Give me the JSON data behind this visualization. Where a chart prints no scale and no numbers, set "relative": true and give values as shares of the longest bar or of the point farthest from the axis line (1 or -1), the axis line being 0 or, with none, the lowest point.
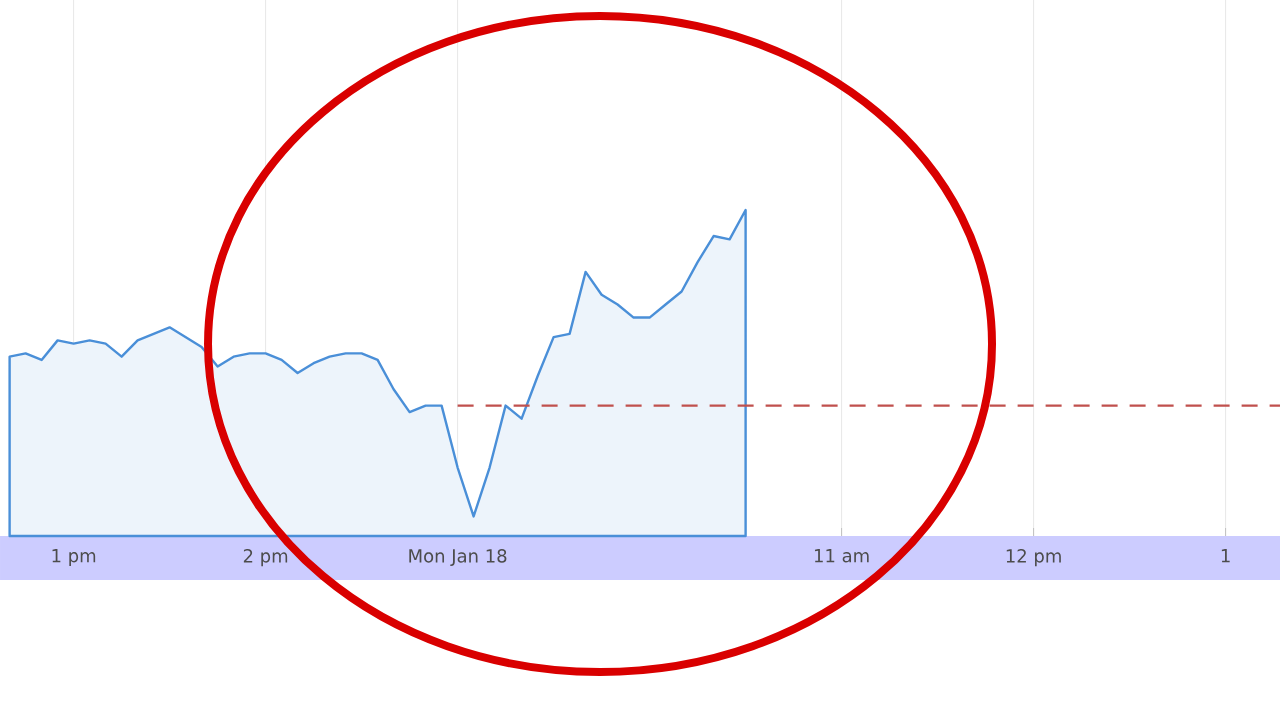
{
  "chart_data": {
    "type": "area",
    "relative": true,
    "color": "#4a8fd8",
    "categories": [
      null,
      null,
      null,
      null,
      "1 pm",
      null,
      null,
      null,
      null,
      null,
      null,
      null,
      null,
      null,
      null,
      null,
      "2 pm",
      null,
      null,
      null,
      null,
      null,
      null,
      null,
      null,
      null,
      null,
      null,
      "Mon Jan 18",
      null,
      null,
      null,
      null,
      null,
      null,
      null,
      null,
      null,
      null,
      null,
      null,
      null,
      null,
      null,
      null,
      null,
      null,
      null,
      null,
      null,
      null,
      null,
      "11 am",
      null,
      null,
      null,
      null,
      null,
      null,
      null,
      null,
      null,
      null,
      null,
      "12 pm",
      null,
      null,
      null,
      null,
      null,
      null,
      null,
      null,
      null,
      null,
      null,
      "1",
      null
    ],
    "values": [
      0.55,
      0.56,
      0.54,
      0.6,
      0.59,
      0.6,
      0.59,
      0.55,
      0.6,
      0.62,
      0.64,
      0.61,
      0.58,
      0.52,
      0.55,
      0.56,
      0.56,
      0.54,
      0.5,
      0.53,
      0.55,
      0.56,
      0.56,
      0.54,
      0.45,
      0.38,
      0.4,
      0.4,
      0.21,
      0.06,
      0.21,
      0.4,
      0.36,
      0.49,
      0.61,
      0.62,
      0.81,
      0.74,
      0.71,
      0.67,
      0.67,
      0.71,
      0.75,
      0.84,
      0.92,
      0.91,
      1,
      null,
      null,
      null,
      null,
      null,
      null,
      null,
      null,
      null,
      null,
      null,
      null,
      null,
      null,
      null,
      null,
      null,
      null,
      null,
      null,
      null,
      null,
      null,
      null,
      null,
      null,
      null,
      null,
      null,
      null,
      null
    ],
    "grid": "x",
    "ref_lines": [
      {
        "axis": "y",
        "value": 0.4,
        "color": "#c0504d",
        "line_style": "dashed"
      }
    ]
  }
}
